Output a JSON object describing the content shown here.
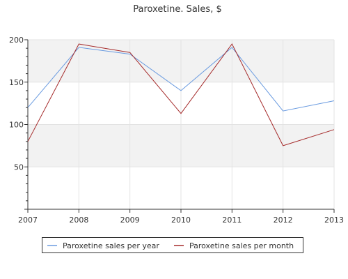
{
  "chart_data": {
    "type": "line",
    "title": "Paroxetine. Sales, $",
    "xlabel": "",
    "ylabel": "",
    "categories": [
      "2007",
      "2008",
      "2009",
      "2010",
      "2011",
      "2012",
      "2013"
    ],
    "ylim": [
      0,
      200
    ],
    "yticks": [
      "50",
      "100",
      "150",
      "200"
    ],
    "grid": "horizontal bands",
    "legend_position": "bottom",
    "series": [
      {
        "name": "Paroxetine sales per year",
        "color": "#6a9be0",
        "values": [
          120,
          191,
          183,
          140,
          191,
          116,
          128
        ]
      },
      {
        "name": "Paroxetine sales per month",
        "color": "#a52a2a",
        "values": [
          80,
          195,
          185,
          113,
          195,
          75,
          94
        ]
      }
    ]
  }
}
